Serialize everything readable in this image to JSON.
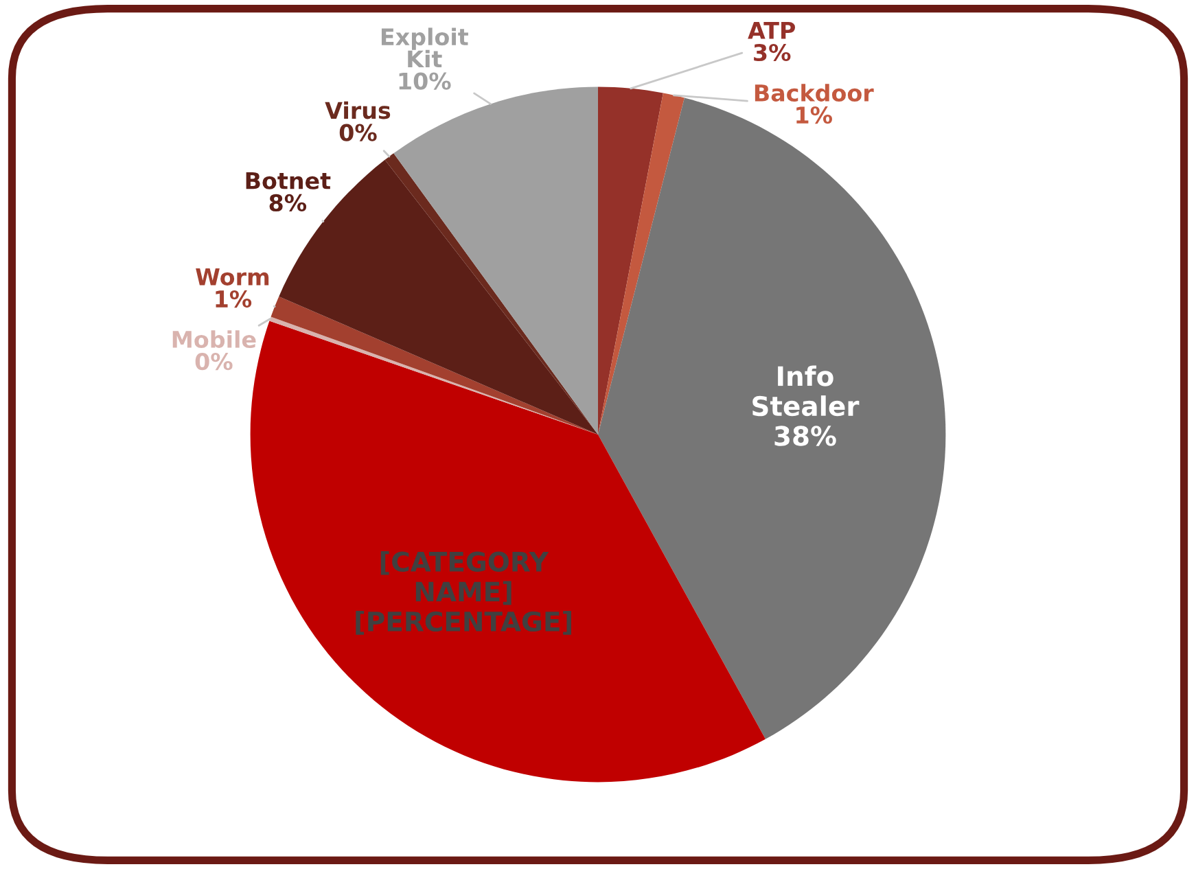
{
  "chart_data": {
    "type": "pie",
    "categories": [
      "ATP",
      "Backdoor",
      "Info Stealer",
      "[CATEGORY NAME]",
      "Mobile",
      "Worm",
      "Botnet",
      "Virus",
      "Exploit Kit"
    ],
    "values": [
      3,
      1,
      38,
      38.3,
      0.2,
      1,
      8,
      0.5,
      10
    ],
    "value_labels": [
      "3%",
      "1%",
      "38%",
      "[PERCENTAGE]",
      "0%",
      "1%",
      "8%",
      "0%",
      "10%"
    ],
    "colors": [
      "#953129",
      "#c4593f",
      "#767676",
      "#c00000",
      "#d9b3ae",
      "#a3402f",
      "#5c1f17",
      "#6b2a1e",
      "#a0a0a0"
    ],
    "legend": false
  }
}
